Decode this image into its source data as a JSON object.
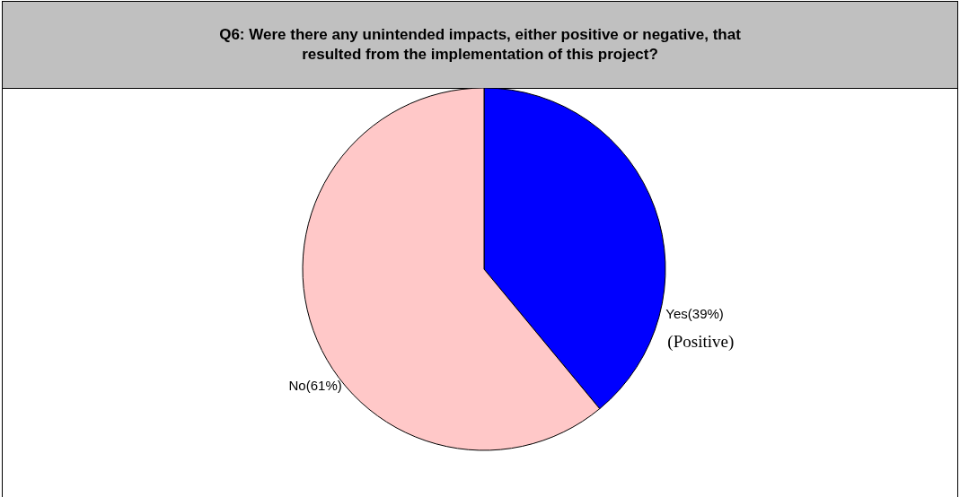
{
  "chart_data": {
    "type": "pie",
    "title": "Q6: Were there any unintended impacts, either positive or negative, that resulted from the implementation of this project?",
    "categories": [
      "Yes",
      "No"
    ],
    "values": [
      39,
      61
    ],
    "value_labels": [
      "(39%)",
      "(61%)"
    ],
    "colors": [
      "#0000ff",
      "#ffc8c8"
    ],
    "annotations": [
      "(Positive)"
    ],
    "legend": false
  }
}
